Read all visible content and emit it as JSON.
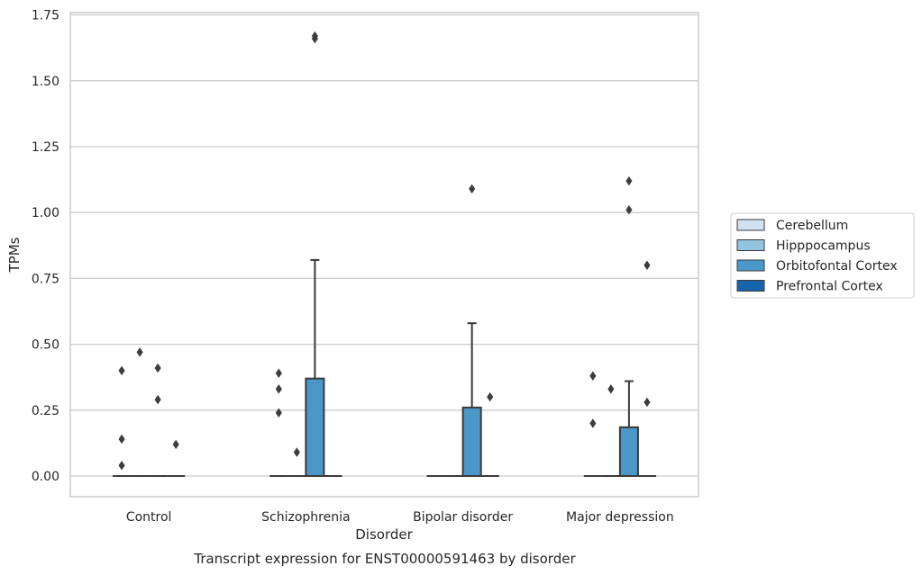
{
  "chart_data": {
    "type": "box",
    "xlabel": "Disorder",
    "ylabel": "TPMs",
    "caption": "Transcript expression for ENST00000591463 by disorder",
    "ylim": [
      -0.08,
      1.76
    ],
    "yticks": [
      "0.00",
      "0.25",
      "0.50",
      "0.75",
      "1.00",
      "1.25",
      "1.50",
      "1.75"
    ],
    "grid": true,
    "legend_position": "right",
    "categories": [
      "Control",
      "Schizophrenia",
      "Bipolar disorder",
      "Major depression"
    ],
    "series": [
      {
        "name": "Cerebellum",
        "color": "#d0e1f2",
        "boxes": [
          {
            "q1": 0,
            "median": 0,
            "q3": 0,
            "whislo": 0,
            "whishi": 0,
            "fliers": [
              0.04,
              0.14,
              0.4
            ]
          },
          {
            "q1": 0,
            "median": 0,
            "q3": 0,
            "whislo": 0,
            "whishi": 0,
            "fliers": [
              0.24,
              0.33,
              0.39
            ]
          },
          {
            "q1": 0,
            "median": 0,
            "q3": 0,
            "whislo": 0,
            "whishi": 0,
            "fliers": []
          },
          {
            "q1": 0,
            "median": 0,
            "q3": 0,
            "whislo": 0,
            "whishi": 0,
            "fliers": [
              0.2,
              0.38
            ]
          }
        ]
      },
      {
        "name": "Hipppocampus",
        "color": "#94c4df",
        "boxes": [
          {
            "q1": 0,
            "median": 0,
            "q3": 0,
            "whislo": 0,
            "whishi": 0,
            "fliers": [
              0.47
            ]
          },
          {
            "q1": 0,
            "median": 0,
            "q3": 0,
            "whislo": 0,
            "whishi": 0,
            "fliers": [
              0.09
            ]
          },
          {
            "q1": 0,
            "median": 0,
            "q3": 0,
            "whislo": 0,
            "whishi": 0,
            "fliers": []
          },
          {
            "q1": 0,
            "median": 0,
            "q3": 0,
            "whislo": 0,
            "whishi": 0,
            "fliers": [
              0.33
            ]
          }
        ]
      },
      {
        "name": "Orbitofontal Cortex",
        "color": "#4a98c9",
        "boxes": [
          {
            "q1": 0,
            "median": 0,
            "q3": 0,
            "whislo": 0,
            "whishi": 0,
            "fliers": [
              0.29,
              0.41
            ]
          },
          {
            "q1": 0,
            "median": 0,
            "q3": 0.37,
            "whislo": 0,
            "whishi": 0.82,
            "fliers": [
              1.66,
              1.67
            ]
          },
          {
            "q1": 0,
            "median": 0,
            "q3": 0.26,
            "whislo": 0,
            "whishi": 0.58,
            "fliers": [
              1.09
            ]
          },
          {
            "q1": 0,
            "median": 0,
            "q3": 0.185,
            "whislo": 0,
            "whishi": 0.36,
            "fliers": [
              1.01,
              1.12
            ]
          }
        ]
      },
      {
        "name": "Prefrontal Cortex",
        "color": "#1764ab",
        "boxes": [
          {
            "q1": 0,
            "median": 0,
            "q3": 0,
            "whislo": 0,
            "whishi": 0,
            "fliers": [
              0.12
            ]
          },
          {
            "q1": 0,
            "median": 0,
            "q3": 0,
            "whislo": 0,
            "whishi": 0,
            "fliers": []
          },
          {
            "q1": 0,
            "median": 0,
            "q3": 0,
            "whislo": 0,
            "whishi": 0,
            "fliers": [
              0.3
            ]
          },
          {
            "q1": 0,
            "median": 0,
            "q3": 0,
            "whislo": 0,
            "whishi": 0,
            "fliers": [
              0.28,
              0.8
            ]
          }
        ]
      }
    ]
  }
}
